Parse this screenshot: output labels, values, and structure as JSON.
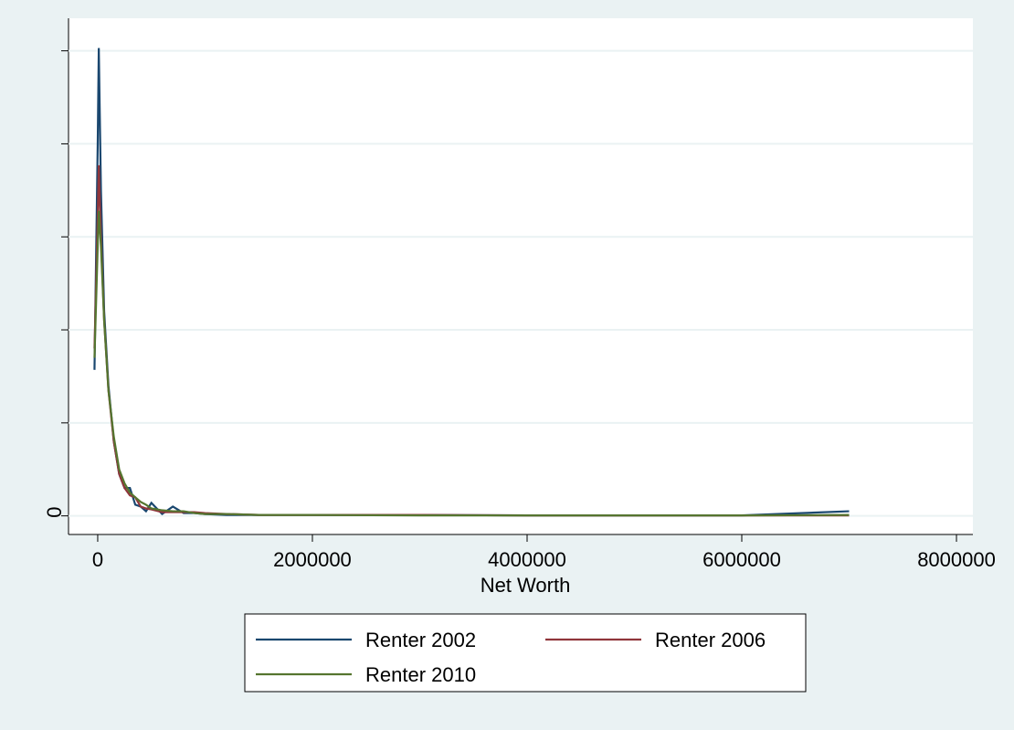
{
  "chart_data": {
    "type": "line",
    "x_label": "Net Worth",
    "x": [
      -30000,
      0,
      10000,
      30000,
      60000,
      100000,
      150000,
      200000,
      250000,
      300000,
      350000,
      400000,
      450000,
      500000,
      600000,
      700000,
      800000,
      900000,
      1000000,
      1200000,
      1500000,
      2000000,
      3000000,
      4000000,
      5000000,
      6000000,
      7000000
    ],
    "series": [
      {
        "name": "Renter 2002",
        "color": "#1a476f",
        "values": [
          1.57,
          4.0,
          5.03,
          3.5,
          2.2,
          1.4,
          0.8,
          0.45,
          0.3,
          0.3,
          0.12,
          0.1,
          0.05,
          0.14,
          0.02,
          0.1,
          0.03,
          0.03,
          0.02,
          0.01,
          0.01,
          0.01,
          0.01,
          0.005,
          0.005,
          0.005,
          0.05
        ]
      },
      {
        "name": "Renter 2006",
        "color": "#90353b",
        "values": [
          1.8,
          3.2,
          3.77,
          3.0,
          2.1,
          1.35,
          0.8,
          0.45,
          0.3,
          0.22,
          0.2,
          0.1,
          0.08,
          0.07,
          0.04,
          0.04,
          0.04,
          0.04,
          0.03,
          0.02,
          0.01,
          0.01,
          0.01,
          0.005,
          0.005,
          0.005,
          0.005
        ]
      },
      {
        "name": "Renter 2010",
        "color": "#55752f",
        "values": [
          1.7,
          2.9,
          3.28,
          2.9,
          2.1,
          1.35,
          0.85,
          0.5,
          0.35,
          0.25,
          0.2,
          0.15,
          0.12,
          0.08,
          0.06,
          0.05,
          0.05,
          0.03,
          0.02,
          0.02,
          0.01,
          0.01,
          0.005,
          0.005,
          0.005,
          0.005,
          0.01
        ]
      }
    ],
    "xlim": [
      -272000,
      8153000
    ],
    "xticks": [
      0,
      2000000,
      4000000,
      6000000,
      8000000
    ],
    "ylim": [
      -0.2,
      5.35
    ],
    "yticks": [
      0,
      {
        "value": 1,
        "label": null
      },
      {
        "value": 2,
        "label": null
      },
      {
        "value": 3,
        "label": null
      },
      {
        "value": 4,
        "label": null
      },
      {
        "value": 5,
        "label": null
      }
    ],
    "grid": true
  }
}
